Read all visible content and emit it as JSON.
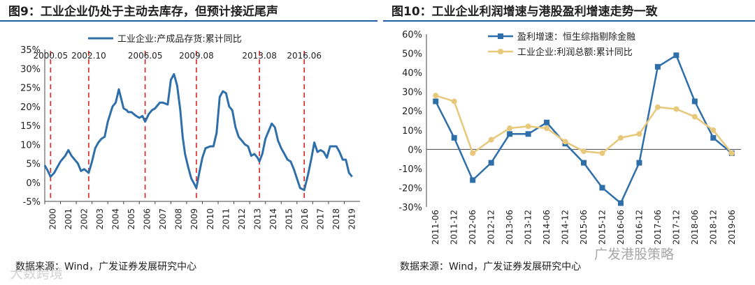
{
  "left_title": "图9：工业企业仍处于主动去库存，但预计接近尾声",
  "right_title": "图10：工业企业利润增速与港股盈利增速走势一致",
  "left_source": "数据来源：Wind，广发证券发展研究中心",
  "right_source": "数据来源：Wind，广发证券发展研究中心",
  "watermark_right": "广发港股策略",
  "watermark_left": "大数跨境",
  "colors": {
    "blue": "#2e6faa",
    "gold": "#e8c87a",
    "red": "#e02020",
    "title_rule": "#1f5fa8"
  },
  "chart_data": [
    {
      "type": "line",
      "title": "图9：工业企业仍处于主动去库存，但预计接近尾声",
      "legend": [
        "工业企业:产成品存货:累计同比"
      ],
      "ylim": [
        -5,
        35
      ],
      "yticks": [
        "-5%",
        "0%",
        "5%",
        "10%",
        "15%",
        "20%",
        "25%",
        "30%",
        "35%"
      ],
      "ytick_values": [
        -5,
        0,
        5,
        10,
        15,
        20,
        25,
        30,
        35
      ],
      "xlim": [
        2000,
        2020
      ],
      "xticks": [
        "2000",
        "2001",
        "2002",
        "2003",
        "2004",
        "2005",
        "2006",
        "2007",
        "2008",
        "2009",
        "2010",
        "2011",
        "2012",
        "2013",
        "2014",
        "2015",
        "2016",
        "2017",
        "2018",
        "2019"
      ],
      "annotations": [
        "2000.05",
        "2002.10",
        "2006.05",
        "2009.08",
        "2013.08",
        "2016.06"
      ],
      "annotation_x": [
        2000.37,
        2002.79,
        2006.37,
        2009.62,
        2013.62,
        2016.46
      ],
      "series": [
        {
          "name": "工业企业:产成品存货:累计同比",
          "x": [
            2000.0,
            2000.2,
            2000.37,
            2000.6,
            2000.8,
            2001.0,
            2001.3,
            2001.5,
            2001.7,
            2001.9,
            2002.1,
            2002.3,
            2002.5,
            2002.79,
            2003.0,
            2003.2,
            2003.4,
            2003.6,
            2003.8,
            2004.0,
            2004.3,
            2004.5,
            2004.7,
            2005.0,
            2005.2,
            2005.3,
            2005.5,
            2005.8,
            2006.0,
            2006.2,
            2006.37,
            2006.6,
            2006.8,
            2007.0,
            2007.3,
            2007.5,
            2007.8,
            2008.0,
            2008.2,
            2008.4,
            2008.6,
            2008.75,
            2008.9,
            2009.1,
            2009.3,
            2009.5,
            2009.62,
            2009.8,
            2010.0,
            2010.2,
            2010.5,
            2010.7,
            2010.9,
            2011.1,
            2011.3,
            2011.5,
            2011.7,
            2011.9,
            2012.1,
            2012.3,
            2012.5,
            2012.7,
            2012.9,
            2013.1,
            2013.3,
            2013.5,
            2013.62,
            2013.8,
            2014.0,
            2014.2,
            2014.4,
            2014.6,
            2014.8,
            2015.0,
            2015.2,
            2015.4,
            2015.6,
            2015.8,
            2016.0,
            2016.2,
            2016.46,
            2016.7,
            2016.9,
            2017.1,
            2017.3,
            2017.5,
            2017.7,
            2017.9,
            2018.1,
            2018.3,
            2018.5,
            2018.7,
            2018.9,
            2019.1,
            2019.3,
            2019.5
          ],
          "values": [
            4.5,
            3.0,
            1.5,
            2.5,
            4.0,
            5.5,
            7.0,
            8.5,
            7.0,
            6.0,
            5.0,
            3.0,
            3.5,
            2.5,
            5.5,
            9.0,
            10.5,
            11.5,
            12.0,
            16.0,
            20.0,
            21.0,
            24.5,
            19.5,
            19.0,
            18.5,
            18.5,
            17.5,
            17.0,
            17.5,
            16.0,
            18.0,
            19.0,
            19.5,
            21.0,
            21.0,
            20.5,
            27.0,
            28.5,
            25.5,
            19.0,
            12.0,
            7.5,
            4.0,
            1.0,
            -0.5,
            -1.5,
            2.5,
            6.5,
            9.0,
            9.5,
            9.5,
            13.0,
            22.5,
            24.0,
            23.5,
            20.0,
            19.0,
            14.5,
            12.0,
            11.0,
            10.0,
            9.5,
            7.0,
            7.5,
            6.5,
            5.5,
            7.5,
            11.5,
            13.5,
            15.5,
            14.5,
            11.0,
            9.0,
            7.5,
            6.0,
            5.5,
            3.5,
            1.0,
            -1.5,
            -2.0,
            2.0,
            6.0,
            10.5,
            8.0,
            8.5,
            8.0,
            6.5,
            9.5,
            9.5,
            9.5,
            8.0,
            6.0,
            6.0,
            2.5,
            1.5
          ]
        }
      ]
    },
    {
      "type": "line",
      "title": "图10：工业企业利润增速与港股盈利增速走势一致",
      "legend": [
        "盈利增速：恒生综指剔除金融",
        "工业企业:利润总额:累计同比"
      ],
      "ylim": [
        -30,
        60
      ],
      "yticks": [
        "-30%",
        "-20%",
        "-10%",
        "0%",
        "10%",
        "20%",
        "30%",
        "40%",
        "50%",
        "60%"
      ],
      "ytick_values": [
        -30,
        -20,
        -10,
        0,
        10,
        20,
        30,
        40,
        50,
        60
      ],
      "categories": [
        "2011-06",
        "2011-12",
        "2012-06",
        "2012-12",
        "2013-06",
        "2013-12",
        "2014-06",
        "2014-12",
        "2015-06",
        "2015-12",
        "2016-06",
        "2016-12",
        "2017-06",
        "2017-12",
        "2018-06",
        "2018-12",
        "2019-06"
      ],
      "series": [
        {
          "name": "盈利增速：恒生综指剔除金融",
          "values": [
            25,
            6,
            -16,
            -7,
            8,
            8,
            14,
            3,
            -7,
            -20,
            -28,
            -7,
            43,
            49,
            25,
            6,
            -2
          ]
        },
        {
          "name": "工业企业:利润总额:累计同比",
          "values": [
            28,
            25,
            -2,
            5,
            11,
            12,
            11,
            4,
            -1,
            -2,
            6,
            8,
            22,
            21,
            17,
            10,
            -2
          ]
        }
      ]
    }
  ]
}
